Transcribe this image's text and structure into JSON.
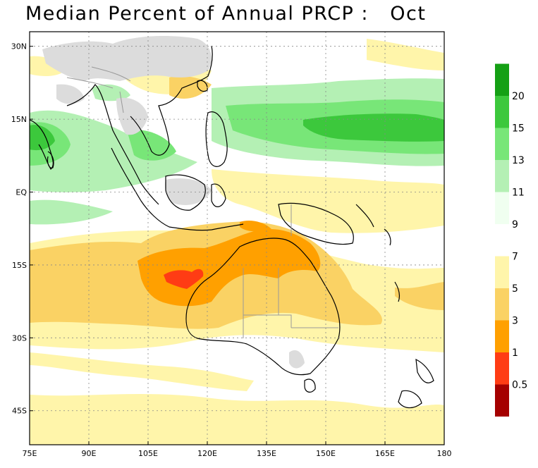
{
  "title": "Median Percent of Annual PRCP :   Oct",
  "map": {
    "lon_range": [
      75,
      180
    ],
    "lat_range": [
      -52,
      33
    ],
    "lon_ticks": [
      "75E",
      "90E",
      "105E",
      "120E",
      "135E",
      "150E",
      "165E",
      "180"
    ],
    "lat_ticks": [
      "30N",
      "15N",
      "EQ",
      "15S",
      "30S",
      "45S"
    ],
    "lat_tick_values": [
      30,
      15,
      0,
      -15,
      -30,
      -45
    ],
    "lon_tick_values": [
      75,
      90,
      105,
      120,
      135,
      150,
      165,
      180
    ],
    "gridlines": true,
    "coastline_color": "#000000",
    "border_color": "#999999"
  },
  "colorbar": {
    "levels": [
      {
        "label": "",
        "color": "#a50000"
      },
      {
        "label": "0.5",
        "color": "#ff3c14"
      },
      {
        "label": "1",
        "color": "#ffa000"
      },
      {
        "label": "3",
        "color": "#fad264"
      },
      {
        "label": "5",
        "color": "#fff5aa"
      },
      {
        "label": "7",
        "color": "#ffffff"
      },
      {
        "label": "9",
        "color": "#f0fff0"
      },
      {
        "label": "11",
        "color": "#b4f0b4"
      },
      {
        "label": "13",
        "color": "#78e678"
      },
      {
        "label": "15",
        "color": "#3cc83c"
      },
      {
        "label": "20",
        "color": "#14a014"
      }
    ]
  }
}
